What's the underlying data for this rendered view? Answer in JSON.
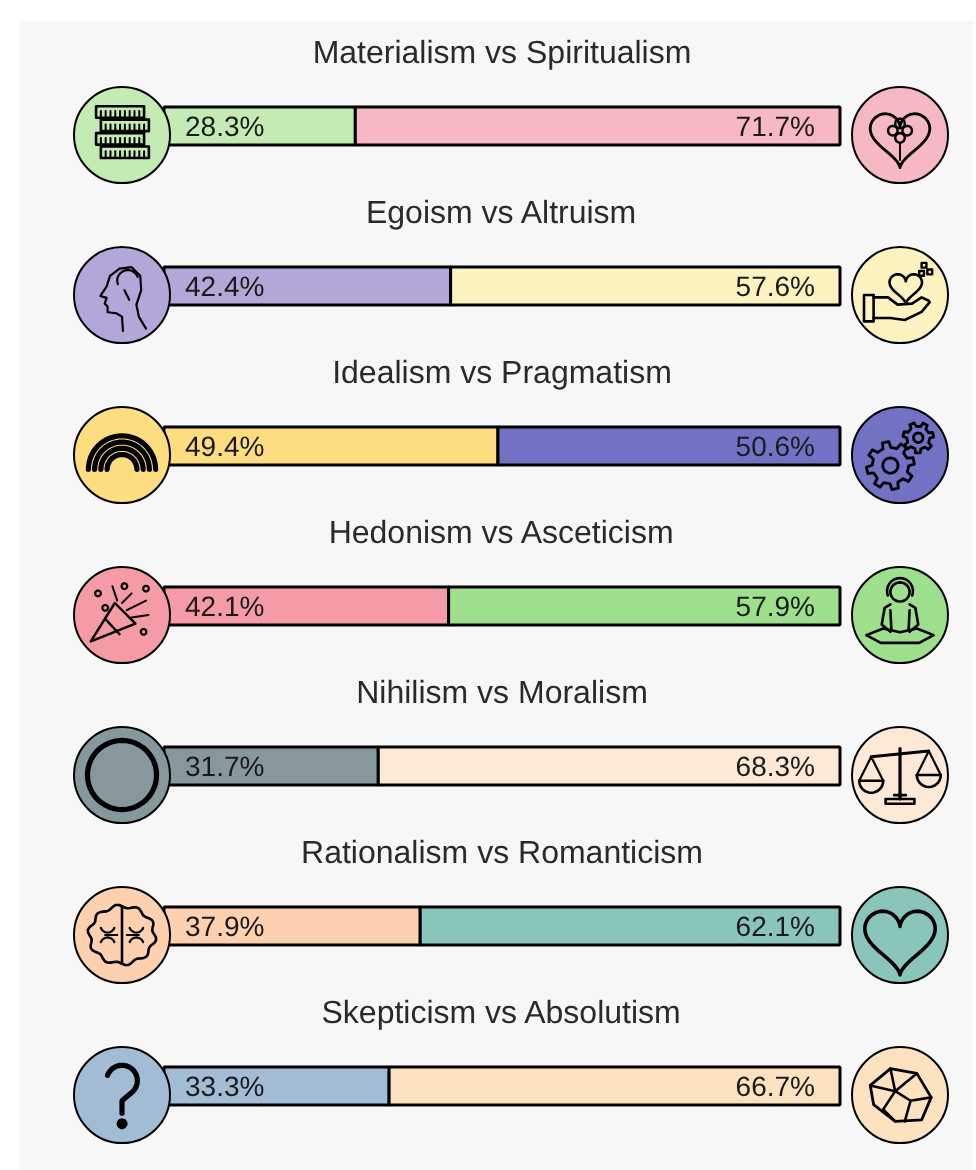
{
  "chart_data": {
    "type": "bar",
    "orientation": "horizontal",
    "stacked": true,
    "categories": [
      "Materialism vs Spiritualism",
      "Egoism vs Altruism",
      "Idealism vs Pragmatism",
      "Hedonism vs Asceticism",
      "Nihilism vs Moralism",
      "Rationalism vs Romanticism",
      "Skepticism vs Absolutism"
    ],
    "series": [
      {
        "values": [
          28.3,
          42.4,
          49.4,
          42.1,
          31.7,
          37.9,
          33.3
        ],
        "colors": [
          "#c5ebb5",
          "#b3a7d9",
          "#fedd80",
          "#f59ba6",
          "#86989c",
          "#fdd1b0",
          "#a2bcd5"
        ],
        "value_labels": [
          "28.3%",
          "42.4%",
          "49.4%",
          "42.1%",
          "31.7%",
          "37.9%",
          "33.3%"
        ]
      },
      {
        "values": [
          71.7,
          57.6,
          50.6,
          57.9,
          68.3,
          62.1,
          66.7
        ],
        "colors": [
          "#f6b8c3",
          "#fdf3c0",
          "#7272c4",
          "#9ddf8c",
          "#fde9d6",
          "#8ac5bb",
          "#fde2bf"
        ],
        "value_labels": [
          "71.7%",
          "57.6%",
          "50.6%",
          "57.9%",
          "68.3%",
          "62.1%",
          "66.7%"
        ]
      }
    ],
    "xlim": [
      0,
      100
    ],
    "tick_labels": false
  }
}
